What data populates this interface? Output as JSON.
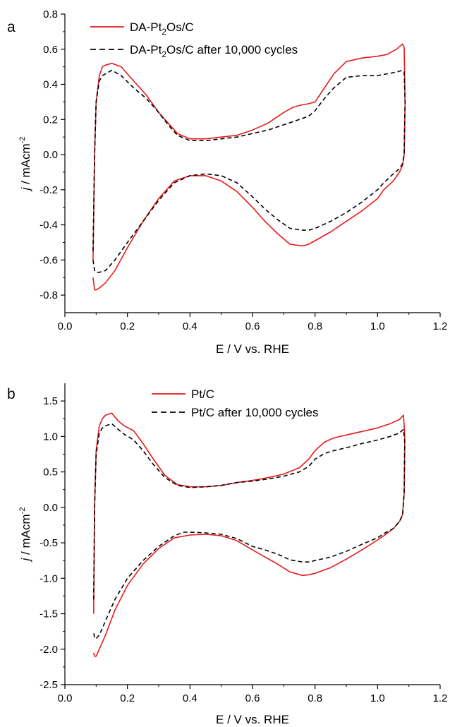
{
  "colors": {
    "fresh": "#e8191c",
    "aged": "#000000",
    "axis": "#000000"
  },
  "chart_data": [
    {
      "type": "line",
      "panel_label": "a",
      "xlabel": "E / V vs. RHE",
      "ylabel_italic": "j",
      "ylabel_rest": " / mAcm",
      "ylabel_sup": "-2",
      "xlim": [
        0.0,
        1.2
      ],
      "ylim": [
        -0.9,
        0.8
      ],
      "xticks": [
        0.0,
        0.2,
        0.4,
        0.6,
        0.8,
        1.0,
        1.2
      ],
      "xtick_labels": [
        "0.0",
        "0.2",
        "0.4",
        "0.6",
        "0.8",
        "1.0",
        "1.2"
      ],
      "yticks": [
        -0.8,
        -0.6,
        -0.4,
        -0.2,
        0.0,
        0.2,
        0.4,
        0.6,
        0.8
      ],
      "ytick_labels": [
        "-0.8",
        "-0.6",
        "-0.4",
        "-0.2",
        "0.0",
        "0.2",
        "0.4",
        "0.6",
        "0.8"
      ],
      "legend_position": "top-left",
      "series": [
        {
          "name": "DA-Pt2Os/C",
          "legend_parts": [
            "DA-Pt",
            "2",
            "Os/C"
          ],
          "color": "#e8191c",
          "style": "solid",
          "x": [
            0.09,
            0.095,
            0.1,
            0.11,
            0.12,
            0.13,
            0.15,
            0.18,
            0.22,
            0.26,
            0.3,
            0.33,
            0.36,
            0.4,
            0.45,
            0.5,
            0.55,
            0.6,
            0.65,
            0.7,
            0.73,
            0.75,
            0.78,
            0.8,
            0.83,
            0.86,
            0.9,
            0.95,
            1.0,
            1.03,
            1.06,
            1.08,
            1.085,
            1.088,
            1.085,
            1.08,
            1.07,
            1.05,
            1.02,
            1.0,
            0.95,
            0.9,
            0.85,
            0.8,
            0.78,
            0.76,
            0.72,
            0.68,
            0.64,
            0.6,
            0.55,
            0.5,
            0.45,
            0.4,
            0.35,
            0.3,
            0.25,
            0.2,
            0.16,
            0.13,
            0.11,
            0.1,
            0.095,
            0.09
          ],
          "y": [
            -0.6,
            0.0,
            0.3,
            0.45,
            0.5,
            0.51,
            0.52,
            0.5,
            0.42,
            0.34,
            0.24,
            0.18,
            0.12,
            0.09,
            0.09,
            0.1,
            0.11,
            0.14,
            0.18,
            0.24,
            0.27,
            0.28,
            0.29,
            0.3,
            0.38,
            0.46,
            0.53,
            0.55,
            0.56,
            0.57,
            0.6,
            0.63,
            0.61,
            0.3,
            0.0,
            -0.06,
            -0.1,
            -0.15,
            -0.2,
            -0.25,
            -0.32,
            -0.38,
            -0.44,
            -0.49,
            -0.51,
            -0.52,
            -0.51,
            -0.45,
            -0.38,
            -0.3,
            -0.21,
            -0.15,
            -0.12,
            -0.12,
            -0.15,
            -0.25,
            -0.38,
            -0.53,
            -0.66,
            -0.73,
            -0.76,
            -0.77,
            -0.77,
            -0.7
          ]
        },
        {
          "name": "DA-Pt2Os/C after 10,000 cycles",
          "legend_parts": [
            "DA-Pt",
            "2",
            "Os/C after 10,000 cycles"
          ],
          "color": "#000000",
          "style": "dashed",
          "x": [
            0.09,
            0.095,
            0.1,
            0.11,
            0.12,
            0.13,
            0.15,
            0.18,
            0.22,
            0.26,
            0.3,
            0.33,
            0.36,
            0.4,
            0.45,
            0.5,
            0.55,
            0.6,
            0.65,
            0.7,
            0.75,
            0.78,
            0.8,
            0.83,
            0.86,
            0.9,
            0.95,
            1.0,
            1.03,
            1.06,
            1.08,
            1.085,
            1.088,
            1.085,
            1.08,
            1.07,
            1.05,
            1.02,
            1.0,
            0.95,
            0.9,
            0.85,
            0.8,
            0.78,
            0.76,
            0.72,
            0.68,
            0.64,
            0.6,
            0.55,
            0.5,
            0.45,
            0.4,
            0.35,
            0.3,
            0.25,
            0.2,
            0.16,
            0.13,
            0.11,
            0.1,
            0.095,
            0.09
          ],
          "y": [
            -0.55,
            0.0,
            0.3,
            0.42,
            0.45,
            0.46,
            0.48,
            0.45,
            0.38,
            0.32,
            0.24,
            0.17,
            0.11,
            0.08,
            0.08,
            0.09,
            0.1,
            0.12,
            0.14,
            0.17,
            0.2,
            0.22,
            0.25,
            0.32,
            0.38,
            0.44,
            0.45,
            0.45,
            0.46,
            0.47,
            0.48,
            0.47,
            0.3,
            0.0,
            -0.05,
            -0.08,
            -0.11,
            -0.16,
            -0.2,
            -0.27,
            -0.33,
            -0.38,
            -0.42,
            -0.43,
            -0.43,
            -0.42,
            -0.37,
            -0.31,
            -0.24,
            -0.16,
            -0.12,
            -0.11,
            -0.12,
            -0.16,
            -0.26,
            -0.38,
            -0.5,
            -0.6,
            -0.66,
            -0.67,
            -0.67,
            -0.66,
            -0.6
          ]
        }
      ]
    },
    {
      "type": "line",
      "panel_label": "b",
      "xlabel": "E / V vs. RHE",
      "ylabel_italic": "j",
      "ylabel_rest": " / mAcm",
      "ylabel_sup": "-2",
      "xlim": [
        0.0,
        1.2
      ],
      "ylim": [
        -2.5,
        1.75
      ],
      "xticks": [
        0.0,
        0.2,
        0.4,
        0.6,
        0.8,
        1.0,
        1.2
      ],
      "xtick_labels": [
        "0.0",
        "0.2",
        "0.4",
        "0.6",
        "0.8",
        "1.0",
        "1.2"
      ],
      "yticks": [
        -2.5,
        -2.0,
        -1.5,
        -1.0,
        -0.5,
        0.0,
        0.5,
        1.0,
        1.5
      ],
      "ytick_labels": [
        "-2.5",
        "-2.0",
        "-1.5",
        "-1.0",
        "-0.5",
        "0.0",
        "0.5",
        "1.0",
        "1.5"
      ],
      "legend_position": "top-center",
      "series": [
        {
          "name": "Pt/C",
          "legend_parts": [
            "Pt/C",
            "",
            ""
          ],
          "color": "#e8191c",
          "style": "solid",
          "x": [
            0.092,
            0.095,
            0.1,
            0.11,
            0.12,
            0.13,
            0.15,
            0.17,
            0.19,
            0.22,
            0.25,
            0.28,
            0.32,
            0.36,
            0.4,
            0.45,
            0.5,
            0.55,
            0.6,
            0.65,
            0.7,
            0.75,
            0.78,
            0.8,
            0.83,
            0.86,
            0.9,
            0.95,
            1.0,
            1.04,
            1.07,
            1.083,
            1.087,
            1.085,
            1.08,
            1.07,
            1.05,
            1.02,
            1.0,
            0.95,
            0.9,
            0.85,
            0.8,
            0.78,
            0.76,
            0.72,
            0.68,
            0.64,
            0.6,
            0.55,
            0.5,
            0.45,
            0.4,
            0.35,
            0.3,
            0.25,
            0.2,
            0.16,
            0.13,
            0.11,
            0.1,
            0.095,
            0.092
          ],
          "y": [
            -1.5,
            0.0,
            0.8,
            1.15,
            1.25,
            1.3,
            1.33,
            1.22,
            1.15,
            1.08,
            0.9,
            0.7,
            0.45,
            0.32,
            0.29,
            0.29,
            0.31,
            0.35,
            0.38,
            0.42,
            0.47,
            0.56,
            0.68,
            0.8,
            0.92,
            0.98,
            1.02,
            1.07,
            1.12,
            1.18,
            1.24,
            1.3,
            1.0,
            0.2,
            -0.1,
            -0.2,
            -0.3,
            -0.4,
            -0.46,
            -0.6,
            -0.73,
            -0.85,
            -0.93,
            -0.95,
            -0.96,
            -0.91,
            -0.8,
            -0.7,
            -0.6,
            -0.47,
            -0.4,
            -0.38,
            -0.39,
            -0.43,
            -0.58,
            -0.8,
            -1.1,
            -1.45,
            -1.8,
            -2.0,
            -2.1,
            -2.1,
            -2.05
          ]
        },
        {
          "name": "Pt/C after 10,000 cycles",
          "legend_parts": [
            "Pt/C after 10,000 cycles",
            "",
            ""
          ],
          "color": "#000000",
          "style": "dashed",
          "x": [
            0.092,
            0.095,
            0.1,
            0.11,
            0.12,
            0.13,
            0.15,
            0.17,
            0.19,
            0.22,
            0.25,
            0.28,
            0.32,
            0.36,
            0.4,
            0.45,
            0.5,
            0.55,
            0.6,
            0.65,
            0.7,
            0.75,
            0.78,
            0.8,
            0.83,
            0.86,
            0.9,
            0.95,
            1.0,
            1.04,
            1.07,
            1.083,
            1.087,
            1.085,
            1.08,
            1.07,
            1.05,
            1.02,
            1.0,
            0.95,
            0.9,
            0.85,
            0.8,
            0.78,
            0.76,
            0.72,
            0.68,
            0.64,
            0.6,
            0.55,
            0.5,
            0.45,
            0.4,
            0.38,
            0.35,
            0.3,
            0.25,
            0.2,
            0.16,
            0.13,
            0.11,
            0.1,
            0.095,
            0.092
          ],
          "y": [
            -1.3,
            0.0,
            0.75,
            1.05,
            1.12,
            1.15,
            1.18,
            1.1,
            1.03,
            0.95,
            0.8,
            0.62,
            0.42,
            0.31,
            0.28,
            0.29,
            0.31,
            0.35,
            0.37,
            0.4,
            0.44,
            0.5,
            0.58,
            0.68,
            0.76,
            0.8,
            0.84,
            0.9,
            0.95,
            1.0,
            1.05,
            1.1,
            0.9,
            0.2,
            -0.1,
            -0.2,
            -0.3,
            -0.37,
            -0.43,
            -0.52,
            -0.62,
            -0.7,
            -0.75,
            -0.77,
            -0.77,
            -0.74,
            -0.66,
            -0.6,
            -0.55,
            -0.44,
            -0.38,
            -0.36,
            -0.35,
            -0.35,
            -0.4,
            -0.55,
            -0.75,
            -1.0,
            -1.3,
            -1.6,
            -1.8,
            -1.85,
            -1.85,
            -1.75
          ]
        }
      ]
    }
  ]
}
